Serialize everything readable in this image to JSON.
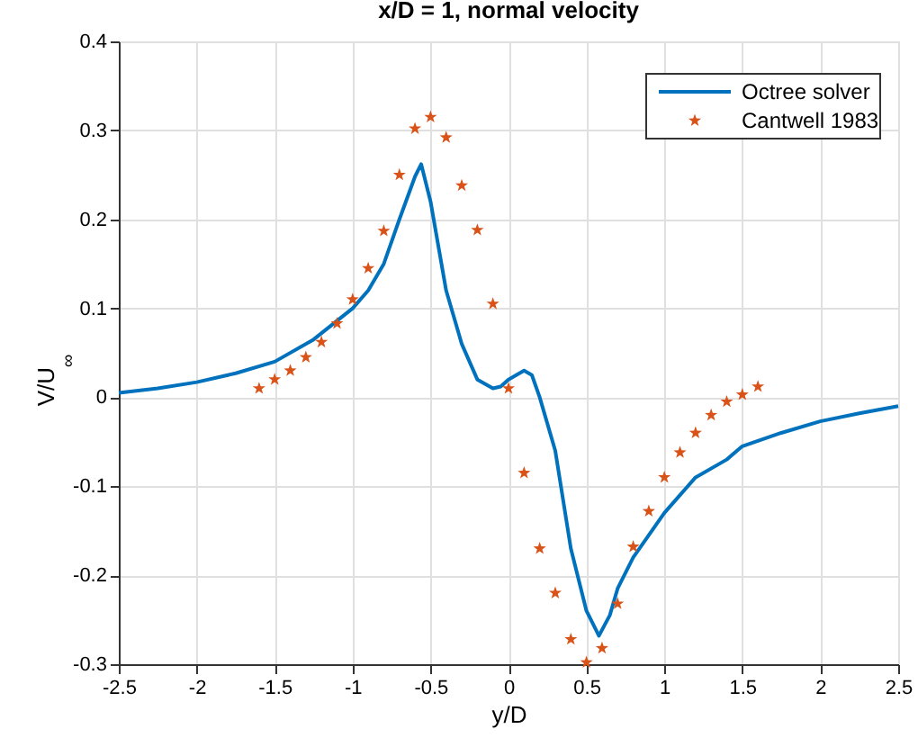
{
  "chart_data": {
    "type": "line",
    "title": "x/D = 1, normal velocity",
    "xlabel": "y/D",
    "ylabel": "V/U$_{∞}$",
    "xlim": [
      -2.5,
      2.5
    ],
    "xticks": [
      -2.5,
      -2,
      -1.5,
      -1,
      -0.5,
      0,
      0.5,
      1,
      1.5,
      2,
      2.5
    ],
    "ylim": [
      -0.3,
      0.4
    ],
    "yticks": [
      -0.3,
      -0.2,
      -0.1,
      0,
      0.1,
      0.2,
      0.3,
      0.4
    ],
    "grid": true,
    "legend": "top right",
    "series": [
      {
        "name": "Octree solver",
        "type": "line",
        "color": "#0072bd",
        "marker": "none",
        "line_style": "solid",
        "x": [
          -2.5,
          -2.25,
          -2,
          -1.75,
          -1.5,
          -1.25,
          -1,
          -0.9,
          -0.8,
          -0.7,
          -0.6,
          -0.56,
          -0.5,
          -0.45,
          -0.4,
          -0.3,
          -0.2,
          -0.1,
          -0.05,
          0,
          0.1,
          0.15,
          0.2,
          0.3,
          0.4,
          0.5,
          0.58,
          0.65,
          0.7,
          0.8,
          0.9,
          1,
          1.1,
          1.2,
          1.4,
          1.5,
          1.75,
          2,
          2.25,
          2.5
        ],
        "values": [
          0.005,
          0.01,
          0.017,
          0.027,
          0.04,
          0.065,
          0.1,
          0.12,
          0.15,
          0.2,
          0.248,
          0.262,
          0.22,
          0.17,
          0.12,
          0.06,
          0.02,
          0.01,
          0.012,
          0.02,
          0.03,
          0.025,
          0.0,
          -0.06,
          -0.17,
          -0.24,
          -0.268,
          -0.245,
          -0.215,
          -0.18,
          -0.155,
          -0.13,
          -0.11,
          -0.09,
          -0.07,
          -0.055,
          -0.04,
          -0.027,
          -0.018,
          -0.01
        ]
      },
      {
        "name": "Cantwell 1983",
        "type": "scatter",
        "color": "#d95319",
        "marker": "star",
        "x": [
          -1.6,
          -1.5,
          -1.4,
          -1.3,
          -1.2,
          -1.1,
          -1,
          -0.9,
          -0.8,
          -0.7,
          -0.6,
          -0.5,
          -0.4,
          -0.3,
          -0.2,
          -0.1,
          0,
          0.1,
          0.2,
          0.3,
          0.4,
          0.5,
          0.6,
          0.7,
          0.8,
          0.9,
          1,
          1.1,
          1.2,
          1.3,
          1.4,
          1.5,
          1.6
        ],
        "values": [
          0.01,
          0.02,
          0.03,
          0.045,
          0.062,
          0.083,
          0.11,
          0.145,
          0.187,
          0.25,
          0.302,
          0.315,
          0.292,
          0.238,
          0.188,
          0.105,
          0.01,
          -0.085,
          -0.17,
          -0.22,
          -0.272,
          -0.298,
          -0.282,
          -0.232,
          -0.168,
          -0.128,
          -0.09,
          -0.062,
          -0.04,
          -0.02,
          -0.005,
          0.003,
          0.012
        ]
      }
    ]
  }
}
